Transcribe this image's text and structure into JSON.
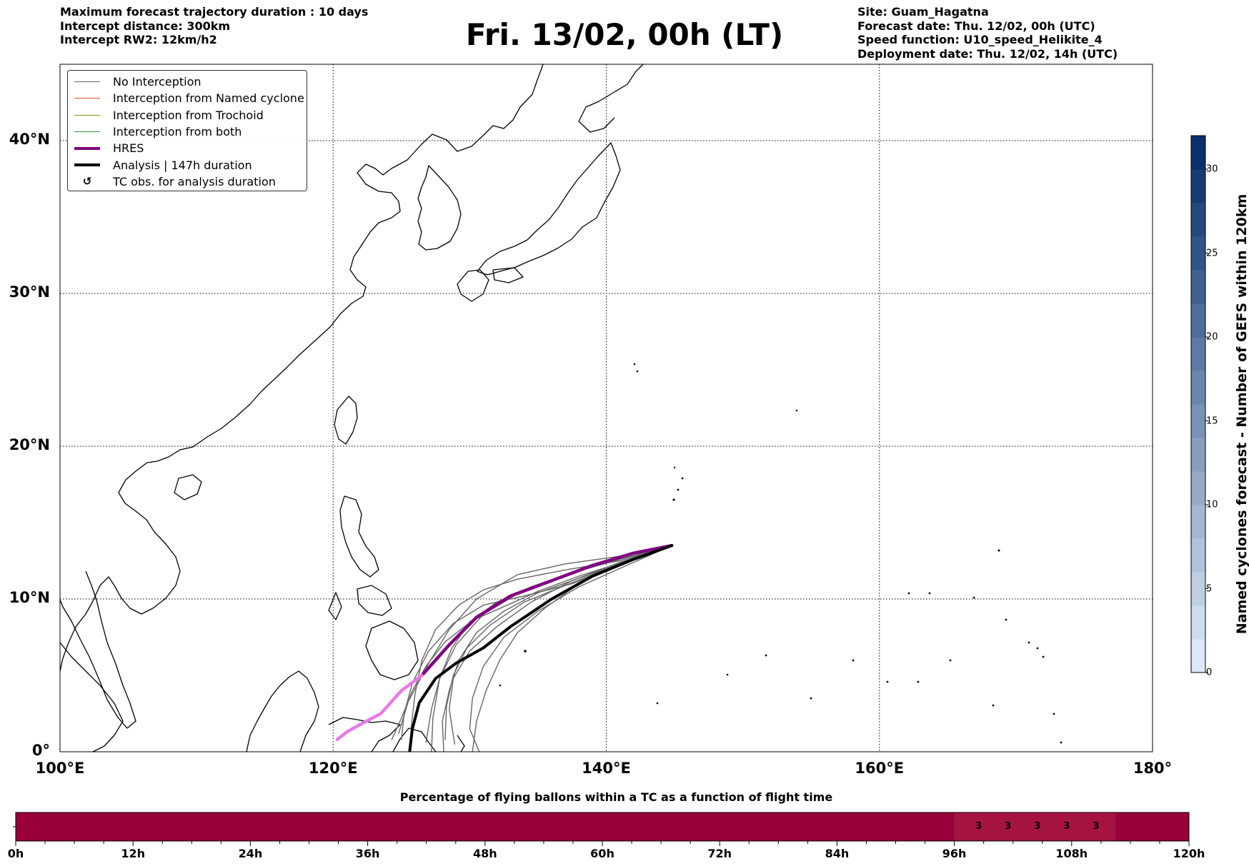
{
  "header": {
    "left": [
      "Maximum forecast trajectory duration : 10 days",
      "Intercept distance: 300km",
      "Intercept RW2: 12km/h2"
    ],
    "title": "Fri. 13/02, 00h (LT)",
    "right": [
      "Site: Guam_Hagatna",
      "Forecast date: Thu. 12/02, 00h (UTC)",
      "Speed function: U10_speed_Helikite_4",
      "Deployment date: Thu. 12/02, 14h (UTC)"
    ]
  },
  "legend": [
    {
      "label": "No Interception",
      "color": "#666666",
      "width": 1.2,
      "kind": "line"
    },
    {
      "label": "Interception from Named cyclone",
      "color": "#e8552a",
      "width": 1.2,
      "kind": "line"
    },
    {
      "label": "Interception from Trochoid",
      "color": "#8a8a18",
      "width": 1.2,
      "kind": "line"
    },
    {
      "label": "Interception from both",
      "color": "#2f8f3f",
      "width": 1.2,
      "kind": "line"
    },
    {
      "label": "HRES",
      "color": "#800080",
      "width": 4,
      "kind": "line"
    },
    {
      "label": "Analysis | 147h duration",
      "color": "#000000",
      "width": 4,
      "kind": "line"
    },
    {
      "label": "TC obs. for analysis duration",
      "symbol": "↺",
      "kind": "symbol"
    }
  ],
  "map": {
    "lon_range": [
      100,
      180
    ],
    "lat_range": [
      0,
      45
    ],
    "lon_ticks": [
      {
        "value": 100,
        "label": "100°E"
      },
      {
        "value": 120,
        "label": "120°E"
      },
      {
        "value": 140,
        "label": "140°E"
      },
      {
        "value": 160,
        "label": "160°E"
      },
      {
        "value": 180,
        "label": "180°"
      }
    ],
    "lat_ticks": [
      {
        "value": 0,
        "label": "0°"
      },
      {
        "value": 10,
        "label": "10°N"
      },
      {
        "value": 20,
        "label": "20°N"
      },
      {
        "value": 30,
        "label": "30°N"
      },
      {
        "value": 40,
        "label": "40°N"
      }
    ],
    "gridlines": true,
    "origin": {
      "lon": 144.8,
      "lat": 13.5
    },
    "hres_track": [
      [
        144.8,
        13.5
      ],
      [
        142,
        13
      ],
      [
        139,
        12.2
      ],
      [
        136,
        11.2
      ],
      [
        133,
        10.2
      ],
      [
        130.5,
        8.8
      ],
      [
        128.5,
        7
      ],
      [
        126.5,
        5
      ],
      [
        125,
        4
      ],
      [
        123.5,
        2.5
      ],
      [
        122,
        1.8
      ],
      [
        121,
        1.3
      ],
      [
        120.3,
        0.8
      ]
    ],
    "analysis_track": [
      [
        144.8,
        13.5
      ],
      [
        142,
        12.6
      ],
      [
        139,
        11.5
      ],
      [
        136,
        10
      ],
      [
        133,
        8.2
      ],
      [
        131,
        6.8
      ],
      [
        129,
        5.8
      ],
      [
        127.5,
        4.8
      ],
      [
        126.3,
        3.2
      ],
      [
        125.8,
        1.5
      ],
      [
        125.6,
        0
      ]
    ],
    "ensemble_tracks": [
      [
        [
          144.8,
          13.5
        ],
        [
          141,
          12.8
        ],
        [
          137,
          12.3
        ],
        [
          133.5,
          11.6
        ],
        [
          130.5,
          10
        ],
        [
          128.5,
          8
        ],
        [
          127,
          5.8
        ],
        [
          125.5,
          3.3
        ],
        [
          124.8,
          1.2
        ]
      ],
      [
        [
          144.8,
          13.5
        ],
        [
          141,
          12.6
        ],
        [
          137,
          11.6
        ],
        [
          134,
          10.6
        ],
        [
          131,
          9
        ],
        [
          129,
          7
        ],
        [
          127.8,
          4.8
        ],
        [
          127.3,
          2.2
        ],
        [
          127.2,
          0
        ]
      ],
      [
        [
          144.8,
          13.5
        ],
        [
          141,
          12.4
        ],
        [
          137.5,
          11.2
        ],
        [
          134.5,
          9.8
        ],
        [
          132,
          8.2
        ],
        [
          130,
          6.6
        ],
        [
          128.8,
          4.8
        ],
        [
          128.5,
          2.8
        ],
        [
          128.9,
          0.5
        ]
      ],
      [
        [
          144.8,
          13.5
        ],
        [
          141.5,
          12.2
        ],
        [
          138,
          10.8
        ],
        [
          135,
          9.2
        ],
        [
          132.5,
          7.5
        ],
        [
          131,
          5.6
        ],
        [
          130.2,
          3.5
        ],
        [
          130,
          1.5
        ],
        [
          130.7,
          0
        ]
      ],
      [
        [
          144.8,
          13.5
        ],
        [
          141,
          12.2
        ],
        [
          137.5,
          11
        ],
        [
          134,
          10.2
        ],
        [
          131,
          9.6
        ],
        [
          128.8,
          8.4
        ],
        [
          127,
          6.6
        ],
        [
          125.8,
          4.5
        ],
        [
          125.2,
          2.5
        ],
        [
          125,
          0.8
        ]
      ],
      [
        [
          144.8,
          13.5
        ],
        [
          141,
          12.5
        ],
        [
          137,
          11.9
        ],
        [
          133.5,
          11.3
        ],
        [
          131,
          10.6
        ],
        [
          129.2,
          9.6
        ],
        [
          127.5,
          8
        ],
        [
          126.5,
          6
        ],
        [
          126,
          3.8
        ],
        [
          125.7,
          1.5
        ]
      ],
      [
        [
          144.8,
          13.5
        ],
        [
          141,
          12.3
        ],
        [
          137.8,
          11.3
        ],
        [
          135,
          10.4
        ],
        [
          132.5,
          9.2
        ],
        [
          130.5,
          7.8
        ],
        [
          129.2,
          6
        ],
        [
          128.5,
          4
        ],
        [
          128,
          2
        ],
        [
          128.1,
          0
        ]
      ],
      [
        [
          144.8,
          13.5
        ],
        [
          141.2,
          12.4
        ],
        [
          138,
          11
        ],
        [
          135.5,
          9.4
        ],
        [
          133.5,
          7.8
        ],
        [
          132.2,
          6
        ],
        [
          131.2,
          4
        ],
        [
          130.5,
          2
        ],
        [
          130.2,
          0
        ]
      ],
      [
        [
          144.8,
          13.5
        ],
        [
          141,
          12.6
        ],
        [
          137.5,
          11.7
        ],
        [
          134.5,
          10.8
        ],
        [
          132,
          9.8
        ],
        [
          130,
          8.5
        ],
        [
          128.7,
          6.8
        ],
        [
          127.8,
          4.8
        ],
        [
          127.2,
          2.8
        ],
        [
          126.8,
          0.6
        ]
      ],
      [
        [
          144.8,
          13.5
        ],
        [
          141,
          12.3
        ],
        [
          137.3,
          11
        ],
        [
          134,
          9.8
        ],
        [
          131.5,
          8.3
        ],
        [
          129.8,
          6.8
        ],
        [
          128.8,
          5
        ],
        [
          128.3,
          3
        ],
        [
          128.2,
          0.8
        ]
      ],
      [
        [
          144.8,
          13.5
        ],
        [
          141.5,
          12.5
        ],
        [
          138,
          11.5
        ],
        [
          135,
          10.5
        ],
        [
          132.5,
          9.5
        ],
        [
          130.2,
          8.6
        ],
        [
          128.2,
          7.2
        ],
        [
          126.8,
          5.6
        ],
        [
          125.8,
          4
        ],
        [
          125,
          2.2
        ],
        [
          124.3,
          0.8
        ]
      ]
    ]
  },
  "colorbar": {
    "label": "Named cyclones forecast - Number of GEFS within 120km",
    "min": 0,
    "max": 32,
    "ticks": [
      0,
      5,
      10,
      15,
      20,
      25,
      30
    ],
    "levels": 16,
    "color_low": "#dbe8f6",
    "color_high": "#08306b"
  },
  "percentage_bar": {
    "title": "Percentage of flying ballons within a TC as a function of flight time",
    "max_hours": 120,
    "base_color": "#99003a",
    "highlight_color": "#a51440",
    "time_ticks": [
      {
        "value": 0,
        "label": "0h"
      },
      {
        "value": 12,
        "label": "12h"
      },
      {
        "value": 24,
        "label": "24h"
      },
      {
        "value": 36,
        "label": "36h"
      },
      {
        "value": 48,
        "label": "48h"
      },
      {
        "value": 60,
        "label": "60h"
      },
      {
        "value": 72,
        "label": "72h"
      },
      {
        "value": 84,
        "label": "84h"
      },
      {
        "value": 96,
        "label": "96h"
      },
      {
        "value": 108,
        "label": "108h"
      },
      {
        "value": 120,
        "label": "120h"
      }
    ],
    "cells": [
      {
        "hour": 99,
        "value": "3"
      },
      {
        "hour": 102,
        "value": "3"
      },
      {
        "hour": 105,
        "value": "3"
      },
      {
        "hour": 108,
        "value": "3"
      },
      {
        "hour": 111,
        "value": "3"
      }
    ]
  }
}
